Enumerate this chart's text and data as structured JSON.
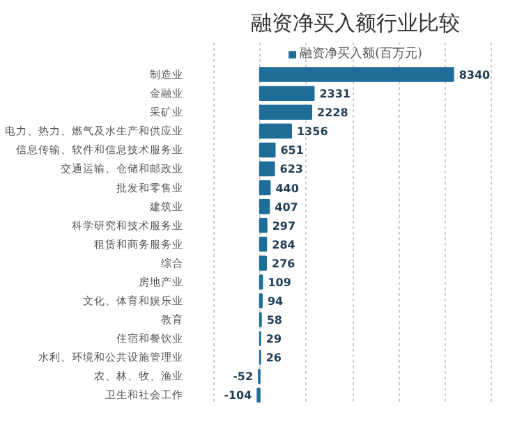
{
  "chart_data": {
    "type": "bar",
    "orientation": "horizontal",
    "title": "融资净买入额行业比较",
    "categories": [
      "制造业",
      "金融业",
      "采矿业",
      "电力、热力、燃气及水生产和供应业",
      "信息传输、软件和信息技术服务业",
      "交通运输、仓储和邮政业",
      "批发和零售业",
      "建筑业",
      "科学研究和技术服务业",
      "租赁和商务服务业",
      "综合",
      "房地产业",
      "文化、体育和娱乐业",
      "教育",
      "住宿和餐饮业",
      "水利、环境和公共设施管理业",
      "农、林、牧、渔业",
      "卫生和社会工作"
    ],
    "series": [
      {
        "name": "融资净买入额(百万元)",
        "color": "#1f6e99",
        "values": [
          8340,
          2331,
          2228,
          1356,
          651,
          623,
          440,
          407,
          297,
          284,
          276,
          109,
          94,
          58,
          29,
          26,
          -52,
          -104
        ]
      }
    ],
    "tick_labels": false,
    "grid": "x",
    "legend": "top",
    "data_labels": true
  }
}
